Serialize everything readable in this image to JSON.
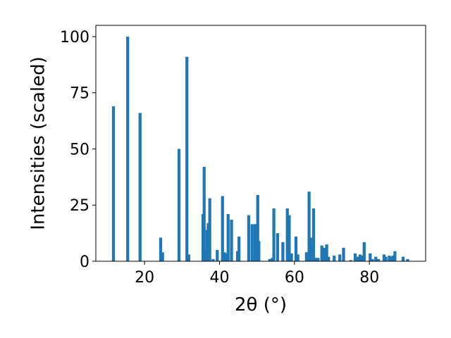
{
  "chart_data": {
    "type": "bar",
    "title": "",
    "xlabel": "2θ (°)",
    "ylabel": "Intensities (scaled)",
    "xlim": [
      7,
      95
    ],
    "ylim": [
      0,
      105
    ],
    "xticks": [
      20,
      40,
      60,
      80
    ],
    "yticks": [
      0,
      25,
      50,
      75,
      100
    ],
    "grid": false,
    "bar_width": 0.8,
    "bar_color": "#1f77b4",
    "x": [
      11.7,
      15.5,
      18.8,
      24.3,
      24.8,
      29.2,
      31.3,
      31.8,
      35.6,
      35.9,
      36.4,
      36.7,
      37.0,
      37.4,
      38.3,
      39.4,
      40.8,
      41.3,
      41.8,
      42.3,
      43.2,
      44.8,
      45.2,
      47.8,
      48.7,
      49.5,
      50.2,
      50.5,
      53.4,
      54.1,
      54.5,
      55.5,
      56.9,
      58.1,
      58.6,
      59.2,
      60.4,
      60.9,
      63.2,
      63.9,
      64.3,
      64.8,
      65.1,
      65.6,
      66.3,
      67.3,
      67.9,
      68.6,
      69.1,
      70.6,
      72.1,
      73.1,
      75.0,
      76.2,
      76.8,
      77.5,
      78.1,
      78.6,
      80.2,
      80.8,
      81.7,
      82.4,
      83.9,
      84.4,
      85.3,
      85.8,
      86.3,
      86.8,
      89.0,
      90.2
    ],
    "values": [
      69,
      100,
      66,
      10.5,
      4,
      50,
      91,
      3,
      21,
      42,
      5,
      14,
      17,
      28,
      1,
      5,
      29,
      4,
      3.5,
      21,
      18.5,
      4.5,
      11,
      20.5,
      16.5,
      16.5,
      29.5,
      9,
      1,
      1.5,
      23.5,
      12.5,
      8.5,
      23.5,
      20.5,
      3.5,
      11,
      3,
      4,
      31,
      10.5,
      7.5,
      23.5,
      1.5,
      1.5,
      7,
      6,
      7.5,
      2,
      2.5,
      3,
      6,
      0.5,
      3.5,
      2,
      3,
      2.5,
      8.5,
      3.5,
      1,
      2,
      1,
      3,
      2,
      2.5,
      2,
      2.5,
      4.5,
      2,
      1
    ]
  }
}
